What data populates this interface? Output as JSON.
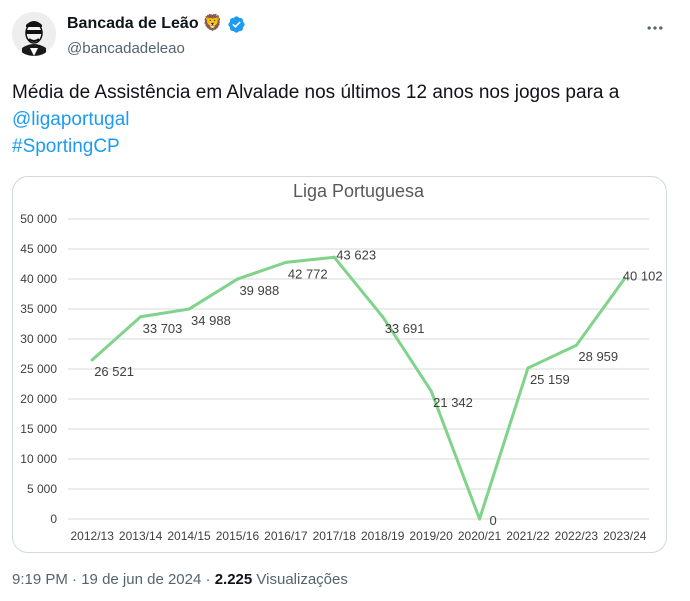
{
  "tweet": {
    "display_name": "Bancada de Leão",
    "lion_emoji": "🦁",
    "handle": "@bancadadeleao",
    "text": "Média de Assistência em Alvalade nos últimos 12 anos nos jogos para a",
    "mention": "@ligaportugal",
    "hashtag": "#SportingCP",
    "time": "9:19 PM",
    "separator": "·",
    "date": "19 de jun de 2024",
    "views_count": "2.225",
    "views_label": "Visualizações",
    "verified_color": "#1d9bf0",
    "icons": [
      "avatar",
      "verified-badge-icon",
      "more-options-icon"
    ]
  },
  "chart_data": {
    "type": "line",
    "title": "Liga Portuguesa",
    "categories": [
      "2012/13",
      "2013/14",
      "2014/15",
      "2015/16",
      "2016/17",
      "2017/18",
      "2018/19",
      "2019/20",
      "2020/21",
      "2021/22",
      "2022/23",
      "2023/24"
    ],
    "values": [
      26521,
      33703,
      34988,
      39988,
      42772,
      43623,
      33691,
      21342,
      0,
      25159,
      28959,
      40102
    ],
    "data_labels": [
      "26 521",
      "33 703",
      "34 988",
      "39 988",
      "42 772",
      "43 623",
      "33 691",
      "21 342",
      "0",
      "25 159",
      "28 959",
      "40 102"
    ],
    "y_ticks": [
      "0",
      "5 000",
      "10 000",
      "15 000",
      "20 000",
      "25 000",
      "30 000",
      "35 000",
      "40 000",
      "45 000",
      "50 000"
    ],
    "ylim": [
      0,
      50000
    ],
    "grid": true,
    "line_color": "#7fd38a",
    "legend": "none"
  }
}
